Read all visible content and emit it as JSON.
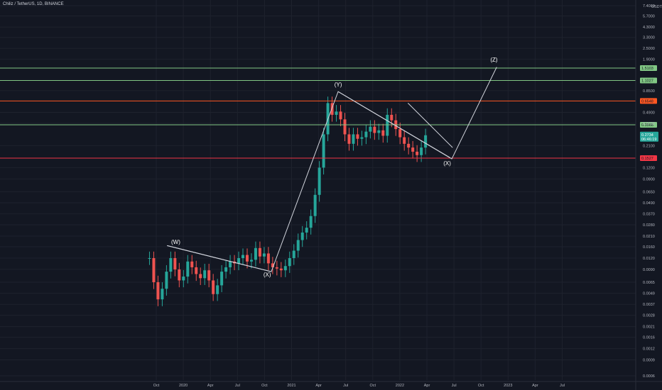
{
  "header": {
    "title": "Chiliz / TetherUS, 1D, BINANCE"
  },
  "chart_data": {
    "type": "candlestick",
    "price_unit": "USDT",
    "scale": "log",
    "y_ticks": [
      7.4,
      5.7,
      4.3,
      3.3,
      2.5,
      1.9,
      0.85,
      0.49,
      0.37,
      0.21,
      0.12,
      0.09,
      0.065,
      0.049,
      0.037,
      0.028,
      0.021,
      0.016,
      0.012,
      0.009,
      0.0065,
      0.0049,
      0.0037,
      0.0028,
      0.0021,
      0.0016,
      0.0012,
      0.0009,
      0.0006
    ],
    "y_tick_labels": [
      "7.4000",
      "5.7000",
      "4.3000",
      "3.3000",
      "2.5000",
      "1.9000",
      "0.8500",
      "0.4900",
      "0.3700",
      "0.2100",
      "0.1200",
      "0.0900",
      "0.0650",
      "0.0490",
      "0.0370",
      "0.0280",
      "0.0210",
      "0.0160",
      "0.0120",
      "0.0090",
      "0.0065",
      "0.0049",
      "0.0037",
      "0.0028",
      "0.0021",
      "0.0016",
      "0.0012",
      "0.0009",
      "0.0006"
    ],
    "x_ticks": [
      "Oct",
      "2020",
      "Apr",
      "Jul",
      "Oct",
      "2021",
      "Apr",
      "Jul",
      "Oct",
      "2022",
      "Apr",
      "Jul",
      "Oct",
      "2023",
      "Apr",
      "Jul"
    ],
    "horizontal_levels": [
      {
        "value": 1.5103,
        "label": "1.5103",
        "color": "#81c784"
      },
      {
        "value": 1.1027,
        "label": "1.1027",
        "color": "#81c784"
      },
      {
        "value": 0.6548,
        "label": "0.6548",
        "color": "#ff5722"
      },
      {
        "value": 0.3566,
        "label": "0.3566",
        "color": "#81c784"
      },
      {
        "value": 0.1527,
        "label": "0.1527",
        "color": "#f23645"
      }
    ],
    "current_price": {
      "value": 0.2734,
      "label": "0.2734",
      "countdown": "06:46:19"
    },
    "wave_labels": [
      {
        "text": "(W)",
        "t": 0.72,
        "price": 0.0172
      },
      {
        "text": "(X)",
        "t": 4.1,
        "price": 0.0075
      },
      {
        "text": "(Y)",
        "t": 6.72,
        "price": 0.95
      },
      {
        "text": "(X)",
        "t": 10.75,
        "price": 0.128
      },
      {
        "text": "(Z)",
        "t": 12.48,
        "price": 1.78
      }
    ],
    "wave_path": [
      {
        "t": 0.4,
        "price": 0.0165
      },
      {
        "t": 4.25,
        "price": 0.0085
      },
      {
        "t": 6.72,
        "price": 0.83
      },
      {
        "t": 10.92,
        "price": 0.15
      },
      {
        "t": 12.58,
        "price": 1.55
      }
    ],
    "channel_lines": [
      [
        {
          "t": 0.4,
          "price": 0.0165
        },
        {
          "t": 4.25,
          "price": 0.0085
        }
      ],
      [
        {
          "t": 6.72,
          "price": 0.83
        },
        {
          "t": 10.85,
          "price": 0.155
        }
      ],
      [
        {
          "t": 9.3,
          "price": 0.62
        },
        {
          "t": 10.95,
          "price": 0.2
        }
      ]
    ],
    "candles_close": [
      0.012,
      0.0065,
      0.0042,
      0.0055,
      0.0085,
      0.012,
      0.009,
      0.0068,
      0.0075,
      0.011,
      0.0095,
      0.008,
      0.0072,
      0.0088,
      0.0068,
      0.0048,
      0.006,
      0.0085,
      0.0095,
      0.011,
      0.0105,
      0.012,
      0.013,
      0.011,
      0.0115,
      0.0155,
      0.0125,
      0.0135,
      0.0105,
      0.0095,
      0.0092,
      0.0088,
      0.0098,
      0.012,
      0.0145,
      0.019,
      0.023,
      0.026,
      0.035,
      0.06,
      0.12,
      0.28,
      0.62,
      0.46,
      0.5,
      0.41,
      0.28,
      0.22,
      0.28,
      0.25,
      0.26,
      0.3,
      0.34,
      0.29,
      0.31,
      0.27,
      0.46,
      0.4,
      0.32,
      0.26,
      0.22,
      0.2,
      0.18,
      0.165,
      0.2,
      0.2734
    ]
  },
  "theme": {
    "background": "#131722",
    "grid": "#1e222d",
    "candle_up": "#26a69a",
    "candle_down": "#ef5350",
    "drawing": "#d1d4dc",
    "price_tag": "#26a69a"
  }
}
